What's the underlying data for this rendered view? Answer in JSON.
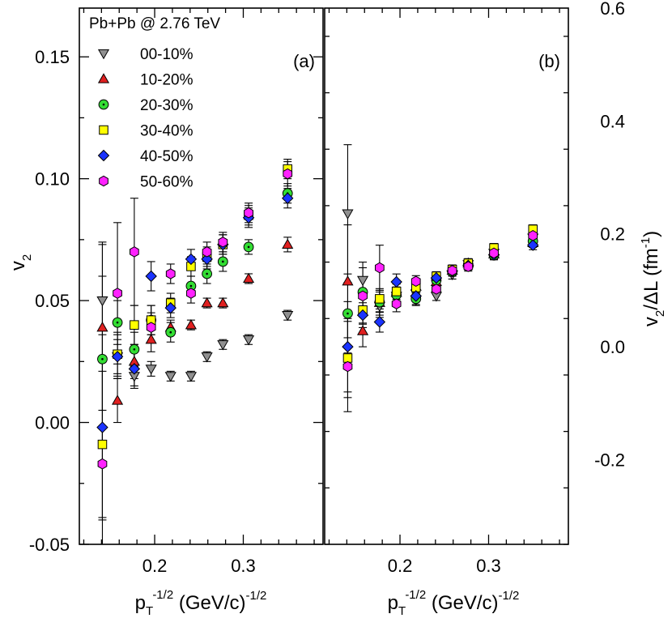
{
  "chart_data": [
    {
      "type": "scatter",
      "panel_label": "(a)",
      "title": "Pb+Pb  @  2.76 TeV",
      "xlabel": {
        "main": "p",
        "sub": "T",
        "sup": "-1/2",
        "rest": " (GeV/c)",
        "rest_sup": "-1/2"
      },
      "ylabel": {
        "main": "v",
        "sub": "2"
      },
      "xlim": [
        0.115,
        0.39
      ],
      "ylim": [
        -0.05,
        0.17
      ],
      "x_ticks": [
        0.2,
        0.3
      ],
      "x_tick_labels": [
        "0.2",
        "0.3"
      ],
      "y_ticks": [
        -0.05,
        0.0,
        0.05,
        0.1,
        0.15
      ],
      "y_tick_labels": [
        "-0.05",
        "0.00",
        "0.05",
        "0.10",
        "0.15"
      ],
      "legend": {
        "position": "top-left"
      },
      "series": [
        {
          "name": "00-10%",
          "marker": "triangle-down",
          "color": "#909090",
          "points": [
            [
              0.141,
              0.05,
              0.024
            ],
            [
              0.158,
              0.027,
              0.007
            ],
            [
              0.177,
              0.019,
              0.004
            ],
            [
              0.196,
              0.022,
              0.003
            ],
            [
              0.218,
              0.019,
              0.002
            ],
            [
              0.241,
              0.019,
              0.002
            ],
            [
              0.259,
              0.027,
              0.002
            ],
            [
              0.277,
              0.032,
              0.002
            ],
            [
              0.306,
              0.034,
              0.002
            ],
            [
              0.35,
              0.044,
              0.002
            ]
          ]
        },
        {
          "name": "10-20%",
          "marker": "triangle-up",
          "color": "#e02020",
          "points": [
            [
              0.141,
              0.039,
              0.034
            ],
            [
              0.158,
              0.009,
              0.009
            ],
            [
              0.177,
              0.025,
              0.007
            ],
            [
              0.196,
              0.034,
              0.005
            ],
            [
              0.218,
              0.039,
              0.003
            ],
            [
              0.241,
              0.04,
              0.002
            ],
            [
              0.259,
              0.049,
              0.002
            ],
            [
              0.277,
              0.049,
              0.002
            ],
            [
              0.306,
              0.059,
              0.002
            ],
            [
              0.35,
              0.073,
              0.003
            ]
          ]
        },
        {
          "name": "20-30%",
          "marker": "circle",
          "color": "#33dd33",
          "points": [
            [
              0.141,
              0.026,
              0.034
            ],
            [
              0.158,
              0.041,
              0.009
            ],
            [
              0.177,
              0.03,
              0.007
            ],
            [
              0.196,
              0.042,
              0.006
            ],
            [
              0.218,
              0.037,
              0.004
            ],
            [
              0.241,
              0.056,
              0.004
            ],
            [
              0.259,
              0.061,
              0.004
            ],
            [
              0.277,
              0.066,
              0.004
            ],
            [
              0.306,
              0.072,
              0.003
            ],
            [
              0.35,
              0.094,
              0.004
            ]
          ]
        },
        {
          "name": "30-40%",
          "marker": "square",
          "color": "#ffff00",
          "points": [
            [
              0.141,
              -0.009,
              0.03
            ],
            [
              0.158,
              0.028,
              0.009
            ],
            [
              0.177,
              0.04,
              0.008
            ],
            [
              0.196,
              0.042,
              0.006
            ],
            [
              0.218,
              0.049,
              0.004
            ],
            [
              0.241,
              0.064,
              0.004
            ],
            [
              0.259,
              0.068,
              0.004
            ],
            [
              0.277,
              0.073,
              0.004
            ],
            [
              0.306,
              0.085,
              0.004
            ],
            [
              0.35,
              0.104,
              0.004
            ]
          ]
        },
        {
          "name": "40-50%",
          "marker": "diamond",
          "color": "#1a33ff",
          "points": [
            [
              0.141,
              -0.002,
              0.038
            ],
            [
              0.158,
              0.027,
              0.009
            ],
            [
              0.177,
              0.022,
              0.008
            ],
            [
              0.196,
              0.06,
              0.006
            ],
            [
              0.218,
              0.047,
              0.004
            ],
            [
              0.241,
              0.067,
              0.004
            ],
            [
              0.259,
              0.067,
              0.004
            ],
            [
              0.277,
              0.073,
              0.004
            ],
            [
              0.306,
              0.084,
              0.004
            ],
            [
              0.35,
              0.092,
              0.004
            ]
          ]
        },
        {
          "name": "50-60%",
          "marker": "hexagon",
          "color": "#ff22ff",
          "points": [
            [
              0.141,
              -0.017,
              0.044
            ],
            [
              0.158,
              0.053,
              0.029
            ],
            [
              0.177,
              0.07,
              0.022
            ],
            [
              0.196,
              0.039,
              0.006
            ],
            [
              0.218,
              0.061,
              0.004
            ],
            [
              0.241,
              0.053,
              0.004
            ],
            [
              0.259,
              0.07,
              0.004
            ],
            [
              0.277,
              0.074,
              0.004
            ],
            [
              0.306,
              0.086,
              0.004
            ],
            [
              0.35,
              0.102,
              0.005
            ]
          ]
        }
      ]
    },
    {
      "type": "scatter",
      "panel_label": "(b)",
      "xlabel": {
        "main": "p",
        "sub": "T",
        "sup": "-1/2",
        "rest": " (GeV/c)",
        "rest_sup": "-1/2"
      },
      "ylabel": {
        "main": "v",
        "sub": "2",
        "rest": "/ΔL  (fm",
        "rest_sup": "-1",
        "tail": ")"
      },
      "xlim": [
        0.115,
        0.39
      ],
      "ylim": [
        -0.35,
        0.6
      ],
      "x_ticks": [
        0.2,
        0.3
      ],
      "x_tick_labels": [
        "0.2",
        "0.3"
      ],
      "y_ticks": [
        -0.2,
        0.0,
        0.2,
        0.4,
        0.6
      ],
      "y_tick_labels": [
        "-0.2",
        "0.0",
        "0.2",
        "0.4",
        "0.6"
      ],
      "series": [
        {
          "name": "00-10%",
          "marker": "triangle-down",
          "color": "#909090",
          "points": [
            [
              0.141,
              0.236,
              0.122
            ],
            [
              0.158,
              0.118,
              0.032
            ],
            [
              0.177,
              0.072,
              0.02
            ],
            [
              0.196,
              0.09,
              0.015
            ],
            [
              0.218,
              0.083,
              0.01
            ],
            [
              0.241,
              0.09,
              0.008
            ],
            [
              0.259,
              0.128,
              0.008
            ],
            [
              0.277,
              0.146,
              0.008
            ],
            [
              0.306,
              0.166,
              0.008
            ],
            [
              0.35,
              0.193,
              0.008
            ]
          ]
        },
        {
          "name": "10-20%",
          "marker": "triangle-up",
          "color": "#e02020",
          "points": [
            [
              0.141,
              0.116,
              0.1
            ],
            [
              0.158,
              0.028,
              0.028
            ],
            [
              0.177,
              0.078,
              0.022
            ],
            [
              0.196,
              0.096,
              0.015
            ],
            [
              0.218,
              0.107,
              0.01
            ],
            [
              0.241,
              0.115,
              0.008
            ],
            [
              0.259,
              0.135,
              0.008
            ],
            [
              0.277,
              0.148,
              0.008
            ],
            [
              0.306,
              0.164,
              0.008
            ],
            [
              0.35,
              0.184,
              0.008
            ]
          ]
        },
        {
          "name": "20-30%",
          "marker": "circle",
          "color": "#33dd33",
          "points": [
            [
              0.141,
              0.059,
              0.07
            ],
            [
              0.158,
              0.097,
              0.025
            ],
            [
              0.177,
              0.079,
              0.018
            ],
            [
              0.196,
              0.092,
              0.014
            ],
            [
              0.218,
              0.085,
              0.01
            ],
            [
              0.241,
              0.118,
              0.008
            ],
            [
              0.259,
              0.133,
              0.008
            ],
            [
              0.277,
              0.146,
              0.008
            ],
            [
              0.306,
              0.162,
              0.008
            ],
            [
              0.35,
              0.187,
              0.008
            ]
          ]
        },
        {
          "name": "30-40%",
          "marker": "square",
          "color": "#ffff00",
          "points": [
            [
              0.141,
              -0.02,
              0.07
            ],
            [
              0.158,
              0.065,
              0.023
            ],
            [
              0.177,
              0.085,
              0.018
            ],
            [
              0.196,
              0.098,
              0.014
            ],
            [
              0.218,
              0.105,
              0.01
            ],
            [
              0.241,
              0.125,
              0.008
            ],
            [
              0.259,
              0.137,
              0.008
            ],
            [
              0.277,
              0.148,
              0.008
            ],
            [
              0.306,
              0.175,
              0.008
            ],
            [
              0.35,
              0.208,
              0.008
            ]
          ]
        },
        {
          "name": "40-50%",
          "marker": "diamond",
          "color": "#1a33ff",
          "points": [
            [
              0.141,
              0.0,
              0.08
            ],
            [
              0.158,
              0.056,
              0.022
            ],
            [
              0.177,
              0.044,
              0.018
            ],
            [
              0.196,
              0.115,
              0.014
            ],
            [
              0.218,
              0.09,
              0.01
            ],
            [
              0.241,
              0.122,
              0.008
            ],
            [
              0.259,
              0.134,
              0.008
            ],
            [
              0.277,
              0.144,
              0.008
            ],
            [
              0.306,
              0.163,
              0.008
            ],
            [
              0.35,
              0.18,
              0.008
            ]
          ]
        },
        {
          "name": "50-60%",
          "marker": "hexagon",
          "color": "#ff22ff",
          "points": [
            [
              0.141,
              -0.035,
              0.08
            ],
            [
              0.158,
              0.09,
              0.05
            ],
            [
              0.177,
              0.14,
              0.04
            ],
            [
              0.196,
              0.076,
              0.014
            ],
            [
              0.218,
              0.116,
              0.01
            ],
            [
              0.241,
              0.102,
              0.008
            ],
            [
              0.259,
              0.135,
              0.008
            ],
            [
              0.277,
              0.142,
              0.008
            ],
            [
              0.306,
              0.166,
              0.008
            ],
            [
              0.35,
              0.197,
              0.008
            ]
          ]
        }
      ]
    }
  ]
}
